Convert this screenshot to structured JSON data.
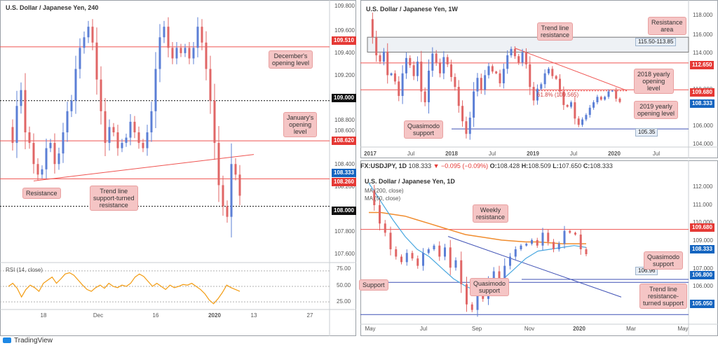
{
  "brand": {
    "name": "TradingView",
    "icon": "tradingview-logo-icon"
  },
  "colors": {
    "up": "#5b7fd6",
    "down": "#e06666",
    "red_line": "#ef5350",
    "blue_line": "#3f51b5",
    "rsi": "#f39c12",
    "tag_red": "#e53935",
    "tag_blue": "#1565c0",
    "tag_black": "#111111",
    "ma200": "#f08c2e",
    "ma50": "#4aa8e0"
  },
  "panels": {
    "h4": {
      "title": "U.S. Dollar / Japanese Yen, 240",
      "y_ticks": [
        "109.800",
        "109.600",
        "109.400",
        "109.200",
        "108.800",
        "108.600",
        "108.400",
        "108.200",
        "107.800",
        "107.600"
      ],
      "x_ticks": [
        "18",
        "Dec",
        "16",
        "2020",
        "13",
        "27"
      ],
      "price_tags": [
        {
          "label": "109.510",
          "color": "red"
        },
        {
          "label": "109.000",
          "color": "black"
        },
        {
          "label": "108.620",
          "color": "red"
        },
        {
          "label": "108.333",
          "color": "blue"
        },
        {
          "label": "108.260",
          "color": "red"
        },
        {
          "label": "108.000",
          "color": "black"
        }
      ],
      "annotations": {
        "decembers_opening": "December's\nopening level",
        "januarys_opening": "January's\nopening\nlevel",
        "resistance": "Resistance",
        "trendline_support": "Trend line\nsupport-turned\nresistance"
      },
      "rsi": {
        "label": "RSI (14, close)",
        "ticks": [
          "75.00",
          "50.00",
          "25.00"
        ]
      }
    },
    "weekly": {
      "title": "U.S. Dollar / Japanese Yen, 1W",
      "y_ticks": [
        "118.000",
        "116.000",
        "114.000",
        "110.000",
        "106.000",
        "104.000"
      ],
      "x_ticks": [
        "2017",
        "Jul",
        "2018",
        "Jul",
        "2019",
        "Jul",
        "2020",
        "Jul"
      ],
      "price_tags": [
        {
          "label": "112.650",
          "color": "red"
        },
        {
          "label": "109.680",
          "color": "red"
        },
        {
          "label": "108.333",
          "color": "blue"
        }
      ],
      "box_labels": {
        "resistance_area": "115.50-113.85",
        "support_level": "105.35"
      },
      "fib_label": "61.8% (109.565)",
      "annotations": {
        "trend_line_resistance": "Trend line\nresistance",
        "resistance_area": "Resistance\narea",
        "yearly_2018": "2018 yearly\nopening\nlevel",
        "yearly_2019": "2019 yearly\nopening level",
        "quasimodo": "Quasimodo\nsupport"
      }
    },
    "daily": {
      "ohlc": {
        "symbol": "FX:USDJPY, 1D",
        "last": "108.333",
        "change": "−0.095 (−0.09%)",
        "O": "108.428",
        "H": "108.509",
        "L": "107.650",
        "C": "108.333"
      },
      "title": "U.S. Dollar / Japanese Yen, 1D",
      "legend": [
        "MA (200, close)",
        "MA (50, close)"
      ],
      "y_ticks": [
        "112.000",
        "111.000",
        "110.000",
        "109.000",
        "107.000",
        "106.000"
      ],
      "x_ticks": [
        "May",
        "Jul",
        "Sep",
        "Nov",
        "2020",
        "Mar",
        "May"
      ],
      "price_tags": [
        {
          "label": "109.680",
          "color": "red"
        },
        {
          "label": "108.333",
          "color": "blue"
        },
        {
          "label": "106.800",
          "color": "blue"
        },
        {
          "label": "105.050",
          "color": "blue"
        }
      ],
      "box_labels": {
        "level": "106.96"
      },
      "annotations": {
        "weekly_resistance": "Weekly\nresistance",
        "quasimodo_right": "Quasimodo\nsupport",
        "support": "Support",
        "quasimodo_mid": "Quasimodo\nsupport",
        "trend_line": "Trend line\nresistance-\nturned support"
      }
    }
  },
  "chart_data": [
    {
      "type": "line",
      "title": "U.S. Dollar / Japanese Yen, 240",
      "ylim": [
        107.5,
        109.9
      ],
      "series": [
        {
          "values": [
            108.75,
            108.6,
            108.95,
            109.1,
            108.7,
            108.6,
            108.4,
            108.3,
            108.35,
            108.55,
            108.6,
            108.4,
            108.5,
            108.7,
            108.9,
            109.0,
            109.3,
            109.5,
            109.6,
            109.7,
            109.55,
            109.2,
            108.9,
            108.6,
            108.75,
            108.7,
            108.55,
            108.6,
            108.65,
            108.8,
            108.7,
            108.6,
            108.55,
            108.7,
            108.9,
            109.3,
            109.6,
            109.7,
            109.5,
            109.4,
            109.5,
            109.45,
            109.5,
            109.4,
            109.5,
            109.7,
            109.55,
            109.3,
            109.0,
            108.6,
            108.2,
            108.0,
            107.9,
            108.4,
            108.3,
            108.1
          ]
        }
      ],
      "levels": [
        109.51,
        109.0,
        108.62,
        108.333,
        108.26,
        108.0
      ]
    },
    {
      "type": "line",
      "title": "RSI (14, close)",
      "ylim": [
        15,
        85
      ],
      "series": [
        {
          "values": [
            50,
            55,
            47,
            33,
            45,
            52,
            48,
            42,
            55,
            60,
            65,
            55,
            62,
            70,
            72,
            68,
            60,
            52,
            45,
            42,
            48,
            52,
            47,
            55,
            50,
            48,
            52,
            50,
            55,
            65,
            70,
            66,
            58,
            50,
            55,
            50,
            45,
            52,
            48,
            50,
            53,
            52,
            55,
            50,
            45,
            38,
            28,
            22,
            30,
            40,
            52,
            48,
            45,
            42
          ]
        }
      ]
    },
    {
      "type": "line",
      "title": "U.S. Dollar / Japanese Yen, 1W",
      "ylim": [
        103.5,
        119
      ],
      "series": [
        {
          "values": [
            117.5,
            115.5,
            113.5,
            112.8,
            113.9,
            111.3,
            111.5,
            110.6,
            109.0,
            111.5,
            113.2,
            112.4,
            111.2,
            112.8,
            109.5,
            108.3,
            111.8,
            113.7,
            112.7,
            111.5,
            113.3,
            112.5,
            111.1,
            110.0,
            107.9,
            106.2,
            104.8,
            106.6,
            109.5,
            111.0,
            109.7,
            111.3,
            112.3,
            111.7,
            111.5,
            110.4,
            112.0,
            113.5,
            114.2,
            113.4,
            112.7,
            113.8,
            112.5,
            110.0,
            108.5,
            109.8,
            110.3,
            111.5,
            112.0,
            111.2,
            110.9,
            109.5,
            108.0,
            107.8,
            108.3,
            106.5,
            105.8,
            106.4,
            106.9,
            107.7,
            108.3,
            108.9,
            108.6,
            108.9,
            109.5,
            109.6,
            108.7,
            108.333
          ]
        }
      ],
      "levels": [
        112.65,
        109.68,
        108.333,
        105.35
      ],
      "resistance_area": [
        113.85,
        115.5
      ],
      "fibonacci": {
        "label": "61.8%",
        "value": 109.565
      }
    },
    {
      "type": "line",
      "title": "U.S. Dollar / Japanese Yen, 1D",
      "ylim": [
        104.6,
        112.6
      ],
      "series": [
        {
          "name": "MA (200, close)",
          "values": [
            110.6,
            110.6,
            110.5,
            110.4,
            110.2,
            110.0,
            109.8,
            109.6,
            109.4,
            109.3,
            109.2,
            109.1,
            109.05,
            109.0,
            109.0,
            108.95,
            108.9,
            108.9,
            108.9
          ]
        },
        {
          "name": "MA (50, close)",
          "values": [
            112.2,
            111.2,
            110.2,
            109.3,
            108.6,
            108.2,
            107.6,
            107.0,
            106.6,
            106.3,
            106.4,
            106.9,
            107.5,
            108.1,
            108.5,
            108.6,
            108.7,
            108.8,
            108.7
          ]
        },
        {
          "values": [
            111.8,
            111.0,
            110.0,
            109.5,
            108.6,
            108.2,
            107.9,
            108.4,
            108.1,
            107.7,
            108.4,
            108.6,
            108.8,
            108.2,
            108.7,
            107.6,
            108.0,
            106.7,
            105.6,
            105.3,
            106.3,
            105.9,
            106.8,
            107.4,
            106.6,
            107.7,
            108.2,
            108.6,
            108.8,
            108.9,
            109.1,
            108.8,
            109.5,
            109.0,
            108.6,
            108.9,
            109.6,
            109.5,
            109.4,
            108.6,
            108.333
          ]
        }
      ],
      "levels": [
        109.68,
        108.333,
        106.96,
        106.8,
        105.05
      ]
    }
  ]
}
